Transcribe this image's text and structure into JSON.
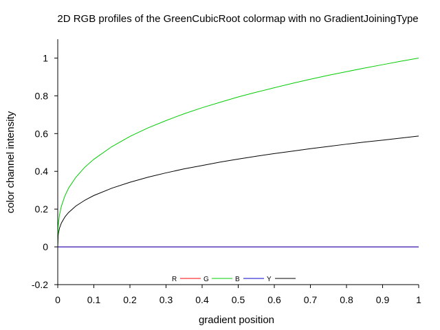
{
  "chart_data": {
    "type": "line",
    "title": "2D RGB profiles of the GreenCubicRoot colormap with no GradientJoiningType",
    "xlabel": "gradient position",
    "ylabel": "color channel intensity",
    "xlim": [
      0,
      1
    ],
    "ylim": [
      -0.2,
      1.1
    ],
    "xticks": [
      "0",
      "0.1",
      "0.2",
      "0.3",
      "0.4",
      "0.5",
      "0.6",
      "0.7",
      "0.8",
      "0.9",
      "1"
    ],
    "yticks": [
      "-0.2",
      "0",
      "0.2",
      "0.4",
      "0.6",
      "0.8",
      "1"
    ],
    "grid": false,
    "legend_position": "bottom-center",
    "x": [
      0,
      0.001,
      0.002,
      0.005,
      0.01,
      0.02,
      0.03,
      0.05,
      0.075,
      0.1,
      0.15,
      0.2,
      0.25,
      0.3,
      0.35,
      0.4,
      0.45,
      0.5,
      0.55,
      0.6,
      0.65,
      0.7,
      0.75,
      0.8,
      0.85,
      0.9,
      0.95,
      1
    ],
    "series": [
      {
        "name": "R",
        "color": "#ff0000",
        "values": [
          0,
          0,
          0,
          0,
          0,
          0,
          0,
          0,
          0,
          0,
          0,
          0,
          0,
          0,
          0,
          0,
          0,
          0,
          0,
          0,
          0,
          0,
          0,
          0,
          0,
          0,
          0,
          0
        ]
      },
      {
        "name": "G",
        "color": "#00cc00",
        "values": [
          0,
          0.1,
          0.126,
          0.171,
          0.215,
          0.271,
          0.311,
          0.368,
          0.422,
          0.464,
          0.531,
          0.585,
          0.63,
          0.669,
          0.705,
          0.737,
          0.766,
          0.794,
          0.819,
          0.843,
          0.866,
          0.888,
          0.909,
          0.928,
          0.947,
          0.965,
          0.983,
          1
        ]
      },
      {
        "name": "B",
        "color": "#0000cc",
        "values": [
          0,
          0,
          0,
          0,
          0,
          0,
          0,
          0,
          0,
          0,
          0,
          0,
          0,
          0,
          0,
          0,
          0,
          0,
          0,
          0,
          0,
          0,
          0,
          0,
          0,
          0,
          0,
          0
        ]
      },
      {
        "name": "Y",
        "color": "#000000",
        "values": [
          0,
          0.059,
          0.074,
          0.1,
          0.126,
          0.159,
          0.182,
          0.216,
          0.247,
          0.272,
          0.311,
          0.342,
          0.369,
          0.392,
          0.413,
          0.431,
          0.449,
          0.465,
          0.48,
          0.494,
          0.507,
          0.52,
          0.532,
          0.544,
          0.555,
          0.565,
          0.576,
          0.587
        ]
      }
    ]
  }
}
